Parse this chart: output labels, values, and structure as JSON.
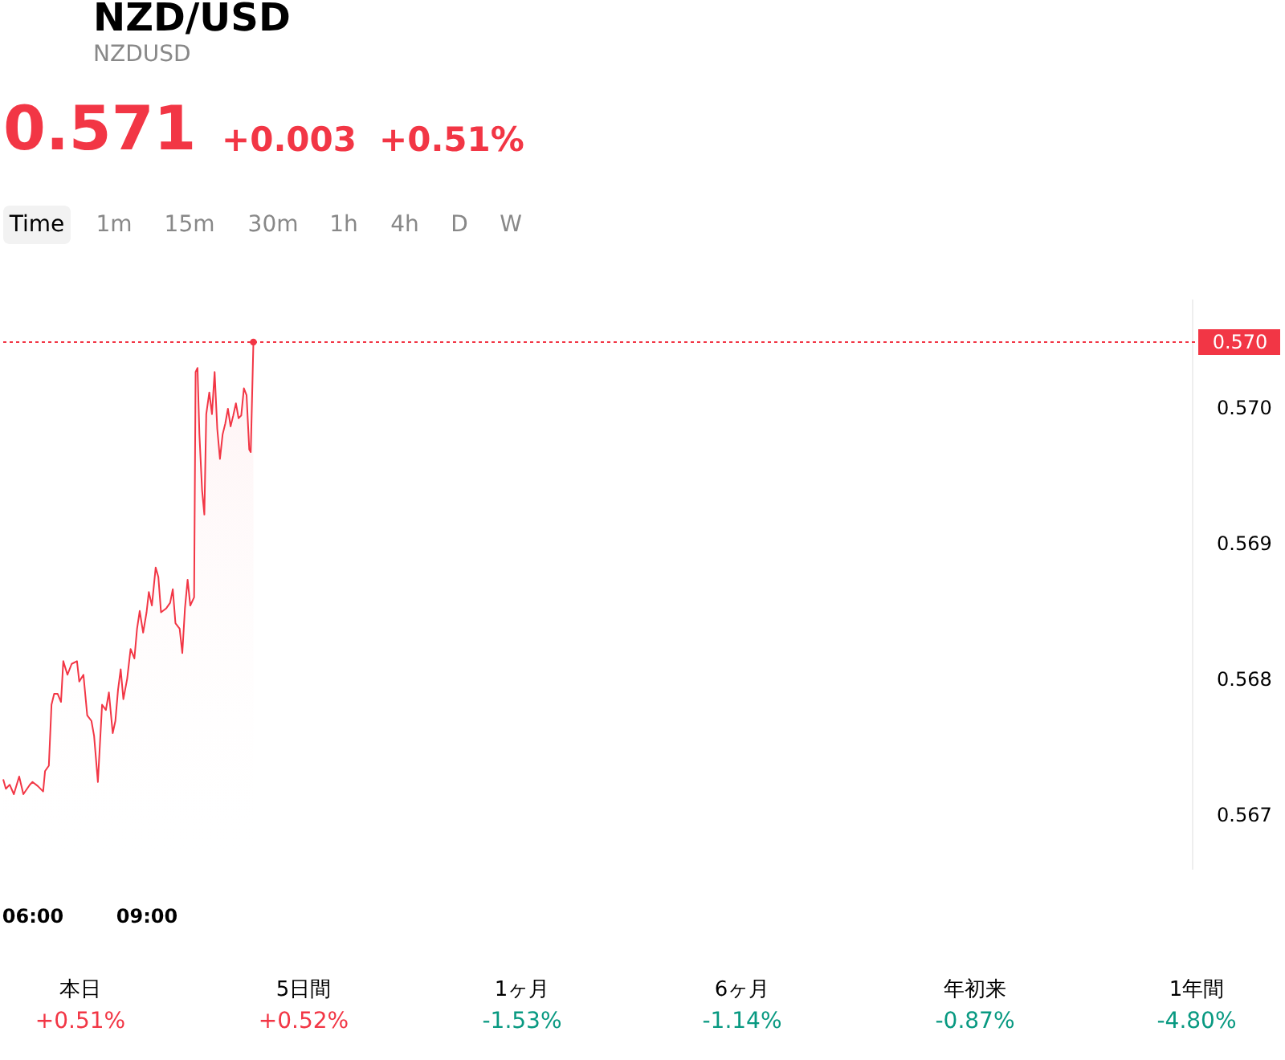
{
  "chart_data": {
    "type": "area",
    "title": "NZD/USD",
    "subtitle": "NZDUSD",
    "annotations": [
      "0.571",
      "+0.003",
      "+0.51%",
      "Time",
      "1m",
      "15m",
      "30m",
      "1h",
      "4h",
      "D",
      "W",
      "本日",
      "+0.51%",
      "5日間",
      "+0.52%",
      "1ヶ月",
      "-1.53%",
      "6ヶ月",
      "-1.14%",
      "年初来",
      "-0.87%",
      "1年間",
      "-4.80%"
    ],
    "x": [
      5.24,
      5.31,
      5.41,
      5.52,
      5.66,
      5.77,
      5.94,
      6.01,
      6.15,
      6.29,
      6.34,
      6.44,
      6.51,
      6.58,
      6.67,
      6.76,
      6.82,
      6.93,
      7.04,
      7.18,
      7.24,
      7.35,
      7.45,
      7.56,
      7.63,
      7.73,
      7.84,
      7.94,
      8.02,
      8.12,
      8.19,
      8.26,
      8.33,
      8.4,
      8.5,
      8.59,
      8.69,
      8.76,
      8.83,
      8.92,
      9.01,
      9.07,
      9.15,
      9.25,
      9.32,
      9.39,
      9.53,
      9.63,
      9.7,
      9.77,
      9.88,
      9.95,
      10.02,
      10.09,
      10.16,
      10.26,
      10.3,
      10.35,
      10.4,
      10.47,
      10.53,
      10.58,
      10.66,
      10.73,
      10.8,
      10.87,
      10.94,
      11.01,
      11.08,
      11.15,
      11.22,
      11.29,
      11.36,
      11.43,
      11.5,
      11.57,
      11.64,
      11.71,
      11.75,
      11.82
    ],
    "series": [
      {
        "color": "#f23645",
        "values": [
          0.56726,
          0.56719,
          0.56722,
          0.56715,
          0.56728,
          0.56715,
          0.56722,
          0.56724,
          0.56721,
          0.56717,
          0.56732,
          0.56736,
          0.56781,
          0.56789,
          0.56789,
          0.56783,
          0.56813,
          0.56803,
          0.56811,
          0.56813,
          0.56798,
          0.56803,
          0.56773,
          0.56769,
          0.56758,
          0.56724,
          0.56781,
          0.56777,
          0.5679,
          0.5676,
          0.56769,
          0.56792,
          0.56807,
          0.56785,
          0.568,
          0.56822,
          0.56815,
          0.56837,
          0.5685,
          0.56834,
          0.56849,
          0.56864,
          0.56854,
          0.56882,
          0.56875,
          0.56849,
          0.56852,
          0.56856,
          0.56866,
          0.56841,
          0.56837,
          0.56819,
          0.56852,
          0.56873,
          0.56854,
          0.5686,
          0.57026,
          0.57029,
          0.5698,
          0.56939,
          0.56921,
          0.56995,
          0.57011,
          0.56995,
          0.57026,
          0.56984,
          0.56962,
          0.5698,
          0.56988,
          0.56999,
          0.56986,
          0.56994,
          0.57003,
          0.56992,
          0.56994,
          0.57014,
          0.57009,
          0.56969,
          0.56967,
          0.57048
        ]
      }
    ],
    "xlim": [
      5.24,
      36.5
    ],
    "xticks": [
      {
        "value": 6,
        "label": "06:00"
      },
      {
        "value": 9,
        "label": "09:00"
      }
    ],
    "ylim": [
      0.5666,
      0.5708
    ],
    "yticks": [
      0.567,
      0.568,
      0.569,
      {
        "value": 0.57,
        "label": "0.570"
      }
    ],
    "ref_lines": [
      {
        "axis": "y",
        "value": 0.57048,
        "label": "0.570",
        "color": "#f23645",
        "line_style": "dotted"
      }
    ],
    "grid": false,
    "legend": false
  }
}
